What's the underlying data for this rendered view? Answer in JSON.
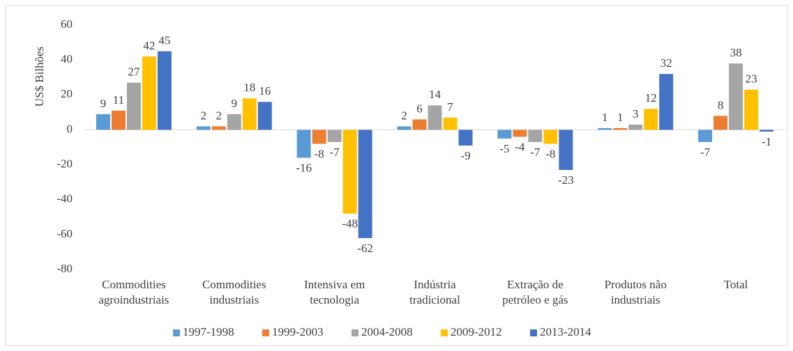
{
  "chart_data": {
    "type": "bar",
    "y_label": "US$ Bilhões",
    "categories": [
      "Commodities\nagroindustriais",
      "Commodities\nindustriais",
      "Intensiva em\ntecnologia",
      "Indústria\ntradicional",
      "Extração de\npetróleo e gás",
      "Produtos não\nindustriais",
      "Total"
    ],
    "series": [
      {
        "name": "1997-1998",
        "color": "#5b9bd5",
        "values": [
          9,
          2,
          -16,
          2,
          -5,
          1,
          -7
        ]
      },
      {
        "name": "1999-2003",
        "color": "#ed7d31",
        "values": [
          11,
          2,
          -8,
          6,
          -4,
          1,
          8
        ]
      },
      {
        "name": "2004-2008",
        "color": "#a5a5a5",
        "values": [
          27,
          9,
          -7,
          14,
          -7,
          3,
          38
        ]
      },
      {
        "name": "2009-2012",
        "color": "#ffc000",
        "values": [
          42,
          18,
          -48,
          7,
          -8,
          12,
          23
        ]
      },
      {
        "name": "2013-2014",
        "color": "#4472c4",
        "values": [
          45,
          16,
          -62,
          -9,
          -23,
          32,
          -1
        ]
      }
    ],
    "ylim": [
      -80,
      60
    ],
    "yticks": [
      -80,
      -60,
      -40,
      -20,
      0,
      20,
      40,
      60
    ],
    "grid": false,
    "legend": "bottom"
  }
}
